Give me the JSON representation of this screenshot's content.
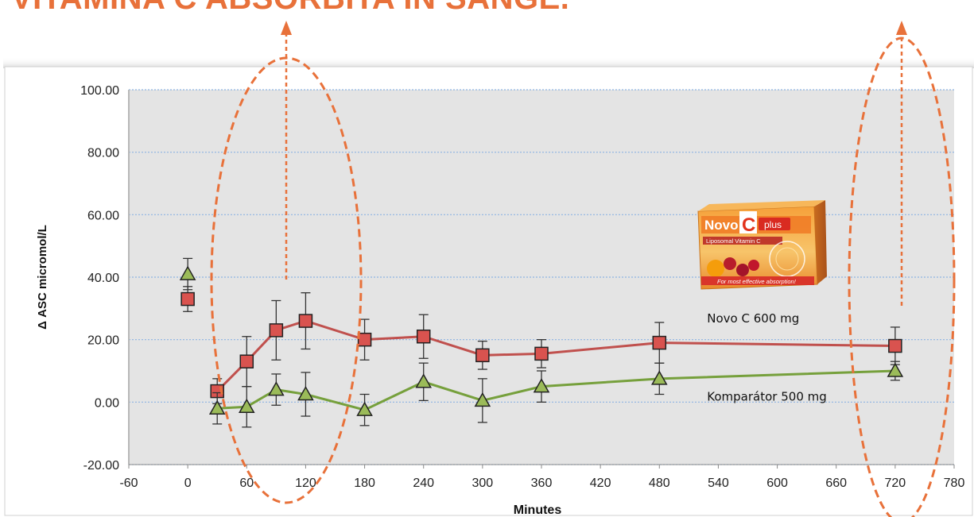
{
  "headline": "VITAMINA C ABSORBITA IN SANGE.",
  "colors": {
    "accent": "#e8713a",
    "novo": "#c0504d",
    "novo_fill": "#d9534f",
    "komparator": "#76a03c",
    "komparator_fill": "#9bbb59",
    "plot_bg": "#e4e4e4",
    "grid": "#8db3e2"
  },
  "package": {
    "brand_left": "Novo",
    "brand_letter": "C",
    "brand_right": "plus",
    "subtitle": "Liposomal Vitamin C",
    "tagline": "For most effective absorption!"
  },
  "chart_data": {
    "type": "line",
    "title": "",
    "xlabel": "Minutes",
    "ylabel": "Δ ASC micromol/L",
    "xlim": [
      -60,
      780
    ],
    "ylim": [
      -20,
      100
    ],
    "xticks": [
      -60,
      0,
      60,
      120,
      180,
      240,
      300,
      360,
      420,
      480,
      540,
      600,
      660,
      720,
      780
    ],
    "yticks": [
      -20,
      0,
      20,
      40,
      60,
      80,
      100
    ],
    "ytick_labels": [
      "-20.00",
      "0.00",
      "20.00",
      "40.00",
      "60.00",
      "80.00",
      "100.00"
    ],
    "grid": "horizontal",
    "series": [
      {
        "name": "Novo C 600 mg",
        "marker": "square",
        "baseline": {
          "x": 0,
          "y": 33,
          "err": 4
        },
        "points": [
          {
            "x": 30,
            "y": 3.5,
            "err": 4
          },
          {
            "x": 60,
            "y": 13,
            "err": 8
          },
          {
            "x": 90,
            "y": 23,
            "err": 9.5
          },
          {
            "x": 120,
            "y": 26,
            "err": 9
          },
          {
            "x": 180,
            "y": 20,
            "err": 6.5
          },
          {
            "x": 240,
            "y": 21,
            "err": 7
          },
          {
            "x": 300,
            "y": 15,
            "err": 4.5
          },
          {
            "x": 360,
            "y": 15.5,
            "err": 4.5
          },
          {
            "x": 480,
            "y": 19,
            "err": 6.5
          },
          {
            "x": 720,
            "y": 18,
            "err": 6
          }
        ]
      },
      {
        "name": "Komparátor 500 mg",
        "marker": "triangle",
        "baseline": {
          "x": 0,
          "y": 41,
          "err": 5
        },
        "points": [
          {
            "x": 30,
            "y": -2,
            "err": 5
          },
          {
            "x": 60,
            "y": -1.5,
            "err": 6.5
          },
          {
            "x": 90,
            "y": 4,
            "err": 5
          },
          {
            "x": 120,
            "y": 2.5,
            "err": 7
          },
          {
            "x": 180,
            "y": -2.5,
            "err": 5
          },
          {
            "x": 240,
            "y": 6.5,
            "err": 6
          },
          {
            "x": 300,
            "y": 0.5,
            "err": 7
          },
          {
            "x": 360,
            "y": 5,
            "err": 5
          },
          {
            "x": 480,
            "y": 7.5,
            "err": 5
          },
          {
            "x": 720,
            "y": 10,
            "err": 3
          }
        ]
      }
    ],
    "annotations": [
      {
        "text": "Novo C 600 mg",
        "x": 480,
        "y": 27
      },
      {
        "text": "Komparátor 500 mg",
        "x": 480,
        "y": 2
      }
    ],
    "highlights": [
      {
        "shape": "dashed-ellipse",
        "x_center": 105,
        "y_center": 33,
        "arrow_to": "top"
      },
      {
        "shape": "dashed-ellipse",
        "x_center": 720,
        "y_center": 33,
        "arrow_to": "top"
      }
    ]
  }
}
